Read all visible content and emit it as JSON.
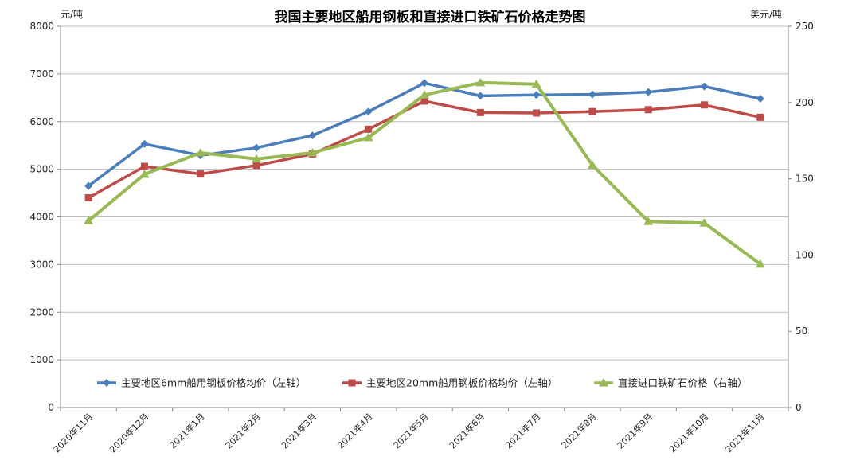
{
  "chart_data": {
    "type": "line",
    "title": "我国主要地区船用钢板和直接进口铁矿石价格走势图",
    "y_left_unit": "元/吨",
    "y_right_unit": "美元/吨",
    "y_left": {
      "range": [
        0,
        8000
      ],
      "ticks": [
        0,
        1000,
        2000,
        3000,
        4000,
        5000,
        6000,
        7000,
        8000
      ]
    },
    "y_right": {
      "range": [
        0,
        250
      ],
      "ticks": [
        0,
        50,
        100,
        150,
        200,
        250
      ]
    },
    "grid": "horizontal",
    "legend_position": "bottom-inside",
    "categories": [
      "2020年11月",
      "2020年12月",
      "2021年1月",
      "2021年2月",
      "2021年3月",
      "2021年4月",
      "2021年5月",
      "2021年6月",
      "2021年7月",
      "2021年8月",
      "2021年9月",
      "2021年10月",
      "2021年11月"
    ],
    "series": [
      {
        "name": "主要地区6mm船用钢板价格均价（左轴）",
        "axis": "left",
        "marker": "diamond",
        "color": "#4a7ebb",
        "values": [
          4650,
          5530,
          5290,
          5450,
          5710,
          6210,
          6810,
          6540,
          6560,
          6570,
          6620,
          6740,
          6480
        ]
      },
      {
        "name": "主要地区20mm船用钢板价格均价（左轴）",
        "axis": "left",
        "marker": "square",
        "color": "#be4b48",
        "values": [
          4400,
          5060,
          4900,
          5080,
          5320,
          5840,
          6430,
          6190,
          6180,
          6210,
          6250,
          6350,
          6090
        ]
      },
      {
        "name": "直接进口铁矿石价格（右轴）",
        "axis": "right",
        "marker": "triangle",
        "color": "#98b954",
        "values": [
          122.5,
          153,
          167,
          163,
          167,
          177,
          205,
          213,
          212,
          159,
          122,
          121,
          94
        ]
      }
    ]
  }
}
